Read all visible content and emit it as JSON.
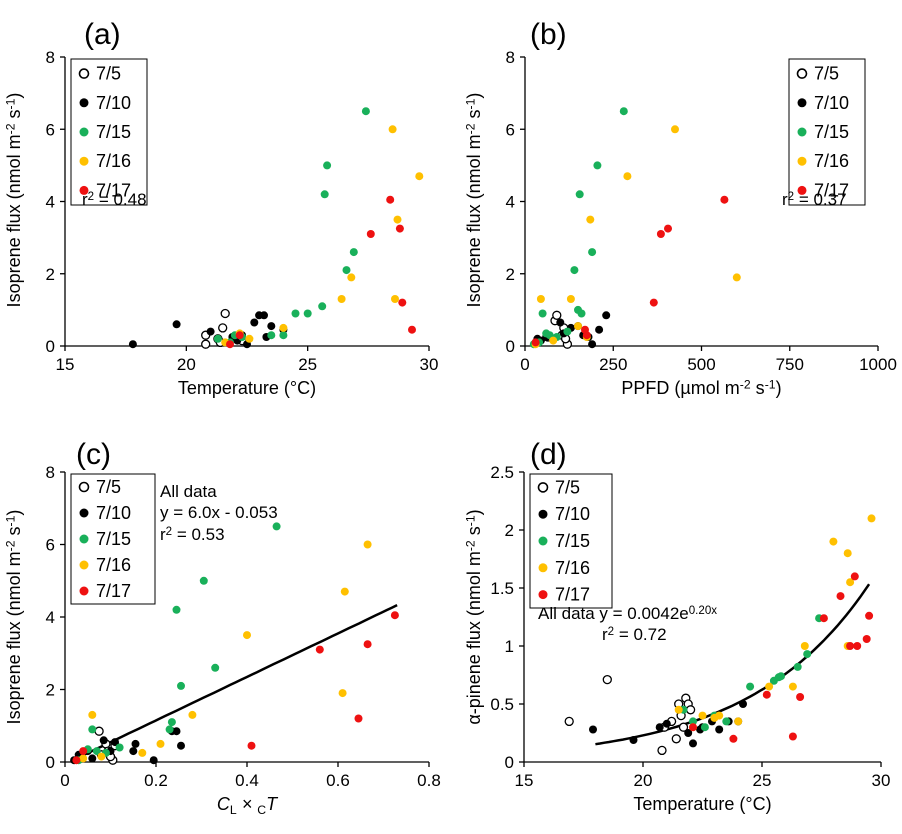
{
  "colors": {
    "7/5": "#ffffff",
    "7/10": "#000000",
    "7/15": "#19b05a",
    "7/16": "#ffc000",
    "7/17": "#ee1111"
  },
  "legend_labels": [
    "7/5",
    "7/10",
    "7/15",
    "7/16",
    "7/17"
  ],
  "chart_data": [
    {
      "panel_label": "(a)",
      "type": "scatter",
      "xlabel": "Temperature (°C)",
      "ylabel_parts": [
        "Isoprene flux (nmol m",
        "-2",
        " s",
        "-1",
        ")"
      ],
      "xlim": [
        15,
        30
      ],
      "ylim": [
        0,
        8
      ],
      "xticks": [
        15,
        20,
        25,
        30
      ],
      "yticks": [
        0,
        2,
        4,
        6,
        8
      ],
      "legend_position": "top-left",
      "annotations": [
        {
          "parts": [
            "r",
            "2",
            " = 0.48"
          ]
        }
      ],
      "series": [
        {
          "name": "7/5",
          "points": [
            [
              20.8,
              0.05
            ],
            [
              20.8,
              0.3
            ],
            [
              21.3,
              0.2
            ],
            [
              21.5,
              0.5
            ],
            [
              21.6,
              0.9
            ],
            [
              21.4,
              0.1
            ],
            [
              22.3,
              0.15
            ]
          ]
        },
        {
          "name": "7/10",
          "points": [
            [
              17.8,
              0.05
            ],
            [
              19.6,
              0.6
            ],
            [
              21.0,
              0.4
            ],
            [
              21.9,
              0.25
            ],
            [
              22.3,
              0.3
            ],
            [
              22.5,
              0.05
            ],
            [
              22.8,
              0.65
            ],
            [
              23.0,
              0.85
            ],
            [
              23.2,
              0.85
            ],
            [
              23.3,
              0.25
            ],
            [
              23.5,
              0.55
            ],
            [
              24.0,
              0.45
            ],
            [
              22.1,
              0.15
            ]
          ]
        },
        {
          "name": "7/15",
          "points": [
            [
              21.3,
              0.2
            ],
            [
              21.8,
              0.1
            ],
            [
              22.3,
              0.25
            ],
            [
              23.5,
              0.3
            ],
            [
              24.0,
              0.3
            ],
            [
              24.5,
              0.9
            ],
            [
              25.0,
              0.9
            ],
            [
              25.6,
              1.1
            ],
            [
              25.7,
              4.2
            ],
            [
              25.8,
              5.0
            ],
            [
              26.6,
              2.1
            ],
            [
              26.9,
              2.6
            ],
            [
              27.4,
              6.5
            ],
            [
              22.0,
              0.3
            ]
          ]
        },
        {
          "name": "7/16",
          "points": [
            [
              21.6,
              0.1
            ],
            [
              22.2,
              0.35
            ],
            [
              24.0,
              0.5
            ],
            [
              26.4,
              1.3
            ],
            [
              26.8,
              1.9
            ],
            [
              28.5,
              6.0
            ],
            [
              28.6,
              1.3
            ],
            [
              28.7,
              3.5
            ],
            [
              29.6,
              4.7
            ],
            [
              22.6,
              0.2
            ]
          ]
        },
        {
          "name": "7/17",
          "points": [
            [
              21.8,
              0.05
            ],
            [
              22.2,
              0.3
            ],
            [
              27.6,
              3.1
            ],
            [
              28.4,
              4.05
            ],
            [
              28.8,
              3.25
            ],
            [
              28.9,
              1.2
            ],
            [
              29.3,
              0.45
            ]
          ]
        }
      ]
    },
    {
      "panel_label": "(b)",
      "type": "scatter",
      "xlabel_parts": [
        "PPFD (µmol m",
        "-2",
        " s",
        "-1",
        ")"
      ],
      "ylabel_parts": [
        "Isoprene flux (nmol m",
        "-2",
        " s",
        "-1",
        ")"
      ],
      "xlim": [
        0,
        1000
      ],
      "ylim": [
        0,
        8
      ],
      "xticks": [
        0,
        250,
        500,
        750,
        1000
      ],
      "yticks": [
        0,
        2,
        4,
        6,
        8
      ],
      "legend_position": "top-right",
      "annotations": [
        {
          "parts": [
            "r",
            "2",
            " = 0.37"
          ]
        }
      ],
      "series": [
        {
          "name": "7/5",
          "points": [
            [
              65,
              0.25
            ],
            [
              85,
              0.7
            ],
            [
              90,
              0.85
            ],
            [
              105,
              0.3
            ],
            [
              110,
              0.5
            ],
            [
              120,
              0.05
            ],
            [
              115,
              0.2
            ]
          ]
        },
        {
          "name": "7/10",
          "points": [
            [
              30,
              0.1
            ],
            [
              35,
              0.2
            ],
            [
              60,
              0.25
            ],
            [
              100,
              0.65
            ],
            [
              110,
              0.35
            ],
            [
              130,
              0.5
            ],
            [
              150,
              0.55
            ],
            [
              165,
              0.3
            ],
            [
              180,
              0.25
            ],
            [
              190,
              0.05
            ],
            [
              210,
              0.45
            ],
            [
              230,
              0.85
            ],
            [
              45,
              0.15
            ]
          ]
        },
        {
          "name": "7/15",
          "points": [
            [
              25,
              0.05
            ],
            [
              40,
              0.1
            ],
            [
              50,
              0.9
            ],
            [
              70,
              0.3
            ],
            [
              90,
              0.25
            ],
            [
              140,
              2.1
            ],
            [
              155,
              4.2
            ],
            [
              150,
              1.0
            ],
            [
              160,
              0.9
            ],
            [
              190,
              2.6
            ],
            [
              205,
              5.0
            ],
            [
              280,
              6.5
            ],
            [
              60,
              0.35
            ],
            [
              120,
              0.4
            ]
          ]
        },
        {
          "name": "7/16",
          "points": [
            [
              30,
              0.05
            ],
            [
              45,
              1.3
            ],
            [
              130,
              1.3
            ],
            [
              150,
              0.55
            ],
            [
              175,
              0.25
            ],
            [
              185,
              3.5
            ],
            [
              290,
              4.7
            ],
            [
              425,
              6.0
            ],
            [
              600,
              1.9
            ],
            [
              80,
              0.15
            ]
          ]
        },
        {
          "name": "7/17",
          "points": [
            [
              30,
              0.1
            ],
            [
              170,
              0.45
            ],
            [
              365,
              1.2
            ],
            [
              385,
              3.1
            ],
            [
              405,
              3.25
            ],
            [
              565,
              4.05
            ],
            [
              175,
              0.3
            ]
          ]
        }
      ]
    },
    {
      "panel_label": "(c)",
      "type": "scatter",
      "xlabel_parts": [
        "C",
        "L",
        " × ",
        "C",
        "T"
      ],
      "ylabel_parts": [
        "Isoprene flux (nmol m",
        "-2",
        " s",
        "-1",
        ")"
      ],
      "xlim": [
        0,
        0.8
      ],
      "ylim": [
        0,
        8
      ],
      "xticks": [
        0,
        0.2,
        0.4,
        0.6,
        0.8
      ],
      "yticks": [
        0,
        2,
        4,
        6,
        8
      ],
      "legend_position": "top-left",
      "annotations": [
        {
          "parts": [
            "All data"
          ]
        },
        {
          "parts": [
            "y = 6.0x - 0.053"
          ]
        },
        {
          "parts": [
            "r",
            "2",
            " = 0.53"
          ]
        }
      ],
      "fit": {
        "kind": "linear",
        "slope": 6.0,
        "intercept": -0.053,
        "x_range": [
          0.02,
          0.73
        ]
      },
      "series": [
        {
          "name": "7/5",
          "points": [
            [
              0.075,
              0.85
            ],
            [
              0.09,
              0.5
            ],
            [
              0.095,
              0.3
            ],
            [
              0.105,
              0.05
            ],
            [
              0.11,
              0.45
            ],
            [
              0.08,
              0.2
            ],
            [
              0.1,
              0.15
            ]
          ]
        },
        {
          "name": "7/10",
          "points": [
            [
              0.02,
              0.05
            ],
            [
              0.03,
              0.2
            ],
            [
              0.05,
              0.3
            ],
            [
              0.085,
              0.6
            ],
            [
              0.1,
              0.3
            ],
            [
              0.11,
              0.55
            ],
            [
              0.15,
              0.3
            ],
            [
              0.155,
              0.5
            ],
            [
              0.195,
              0.05
            ],
            [
              0.235,
              0.85
            ],
            [
              0.245,
              0.85
            ],
            [
              0.255,
              0.45
            ],
            [
              0.06,
              0.1
            ]
          ]
        },
        {
          "name": "7/15",
          "points": [
            [
              0.03,
              0.05
            ],
            [
              0.06,
              0.9
            ],
            [
              0.07,
              0.3
            ],
            [
              0.09,
              0.25
            ],
            [
              0.23,
              0.9
            ],
            [
              0.235,
              1.1
            ],
            [
              0.245,
              4.2
            ],
            [
              0.255,
              2.1
            ],
            [
              0.305,
              5.0
            ],
            [
              0.33,
              2.6
            ],
            [
              0.465,
              6.5
            ],
            [
              0.05,
              0.35
            ],
            [
              0.12,
              0.4
            ]
          ]
        },
        {
          "name": "7/16",
          "points": [
            [
              0.04,
              0.1
            ],
            [
              0.06,
              1.3
            ],
            [
              0.17,
              0.25
            ],
            [
              0.21,
              0.5
            ],
            [
              0.28,
              1.3
            ],
            [
              0.4,
              3.5
            ],
            [
              0.61,
              1.9
            ],
            [
              0.615,
              4.7
            ],
            [
              0.665,
              6.0
            ],
            [
              0.08,
              0.15
            ]
          ]
        },
        {
          "name": "7/17",
          "points": [
            [
              0.025,
              0.05
            ],
            [
              0.04,
              0.3
            ],
            [
              0.41,
              0.45
            ],
            [
              0.56,
              3.1
            ],
            [
              0.645,
              1.2
            ],
            [
              0.665,
              3.25
            ],
            [
              0.725,
              4.05
            ]
          ]
        }
      ]
    },
    {
      "panel_label": "(d)",
      "type": "scatter",
      "xlabel": "Temperature (°C)",
      "ylabel_parts": [
        "α-pinene flux (nmol m",
        "-2",
        " s",
        "-1",
        ")"
      ],
      "xlim": [
        15,
        30
      ],
      "ylim": [
        0,
        2.5
      ],
      "xticks": [
        15,
        20,
        25,
        30
      ],
      "yticks": [
        0,
        0.5,
        1,
        1.5,
        2,
        2.5
      ],
      "ytick_labels": [
        "0",
        "0.5",
        "1",
        "1.5",
        "2",
        "2.5"
      ],
      "legend_position": "top-left",
      "annotations": [
        {
          "parts": [
            "All data y = 0.0042e",
            "0.20x",
            ""
          ]
        },
        {
          "parts": [
            "r",
            "2",
            " = 0.72"
          ]
        }
      ],
      "fit": {
        "kind": "exponential",
        "a": 0.0042,
        "b": 0.2,
        "x_range": [
          18.0,
          29.5
        ]
      },
      "series": [
        {
          "name": "7/5",
          "points": [
            [
              16.9,
              0.35
            ],
            [
              18.5,
              0.71
            ],
            [
              20.8,
              0.1
            ],
            [
              20.9,
              0.3
            ],
            [
              21.2,
              0.35
            ],
            [
              21.4,
              0.2
            ],
            [
              21.5,
              0.5
            ],
            [
              21.6,
              0.4
            ],
            [
              21.8,
              0.55
            ],
            [
              21.9,
              0.5
            ],
            [
              22.0,
              0.45
            ],
            [
              21.7,
              0.3
            ]
          ]
        },
        {
          "name": "7/10",
          "points": [
            [
              17.9,
              0.28
            ],
            [
              19.6,
              0.19
            ],
            [
              20.7,
              0.3
            ],
            [
              21.0,
              0.33
            ],
            [
              21.9,
              0.25
            ],
            [
              22.1,
              0.16
            ],
            [
              22.5,
              0.3
            ],
            [
              22.9,
              0.35
            ],
            [
              23.2,
              0.28
            ],
            [
              23.6,
              0.35
            ],
            [
              24.0,
              0.35
            ],
            [
              24.2,
              0.5
            ],
            [
              22.4,
              0.28
            ]
          ]
        },
        {
          "name": "7/15",
          "points": [
            [
              21.7,
              0.45
            ],
            [
              22.1,
              0.35
            ],
            [
              23.0,
              0.4
            ],
            [
              23.5,
              0.35
            ],
            [
              24.5,
              0.65
            ],
            [
              25.5,
              0.7
            ],
            [
              25.7,
              0.73
            ],
            [
              25.8,
              0.74
            ],
            [
              26.5,
              0.82
            ],
            [
              26.9,
              0.93
            ],
            [
              27.4,
              1.24
            ],
            [
              22.6,
              0.3
            ]
          ]
        },
        {
          "name": "7/16",
          "points": [
            [
              21.5,
              0.45
            ],
            [
              22.1,
              0.3
            ],
            [
              22.5,
              0.4
            ],
            [
              23.0,
              0.38
            ],
            [
              23.2,
              0.4
            ],
            [
              24.0,
              0.35
            ],
            [
              25.3,
              0.65
            ],
            [
              26.3,
              0.65
            ],
            [
              26.8,
              1.0
            ],
            [
              28.0,
              1.9
            ],
            [
              28.6,
              1.8
            ],
            [
              28.6,
              1.0
            ],
            [
              28.7,
              1.55
            ],
            [
              29.6,
              2.1
            ]
          ]
        },
        {
          "name": "7/17",
          "points": [
            [
              22.1,
              0.3
            ],
            [
              23.8,
              0.2
            ],
            [
              25.2,
              0.58
            ],
            [
              26.3,
              0.22
            ],
            [
              26.6,
              0.56
            ],
            [
              27.6,
              1.24
            ],
            [
              28.3,
              1.43
            ],
            [
              28.7,
              1.0
            ],
            [
              28.9,
              1.6
            ],
            [
              29.0,
              1.0
            ],
            [
              29.4,
              1.06
            ],
            [
              29.5,
              1.26
            ]
          ]
        }
      ]
    }
  ]
}
